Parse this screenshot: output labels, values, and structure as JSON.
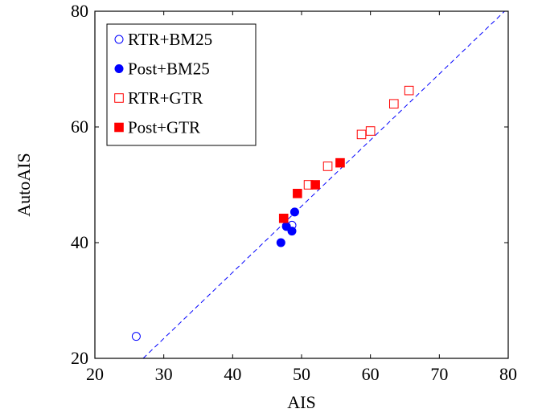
{
  "chart_data": {
    "type": "scatter",
    "xlabel": "AIS",
    "ylabel": "AutoAIS",
    "xlim": [
      20,
      80
    ],
    "ylim": [
      20,
      80
    ],
    "xticks": [
      20,
      30,
      40,
      50,
      60,
      70,
      80
    ],
    "yticks": [
      20,
      40,
      60,
      80
    ],
    "grid": false,
    "legend_position": "top-left",
    "reference_line": {
      "style": "dashed",
      "color": "#0000ff",
      "points": [
        [
          27,
          20
        ],
        [
          80,
          80.6
        ]
      ]
    },
    "series": [
      {
        "name": "RTR+BM25",
        "marker": "circle",
        "filled": false,
        "color": "#0000ff",
        "points": [
          [
            26.0,
            23.8
          ],
          [
            48.6,
            43.0
          ]
        ]
      },
      {
        "name": "Post+BM25",
        "marker": "circle",
        "filled": true,
        "color": "#0000ff",
        "points": [
          [
            47.0,
            40.0
          ],
          [
            47.8,
            42.8
          ],
          [
            48.6,
            42.0
          ],
          [
            49.0,
            45.3
          ]
        ]
      },
      {
        "name": "RTR+GTR",
        "marker": "square",
        "filled": false,
        "color": "#ff0000",
        "points": [
          [
            51.0,
            50.0
          ],
          [
            53.8,
            53.2
          ],
          [
            58.7,
            58.7
          ],
          [
            60.0,
            59.3
          ],
          [
            63.4,
            64.0
          ],
          [
            65.6,
            66.3
          ]
        ]
      },
      {
        "name": "Post+GTR",
        "marker": "square",
        "filled": true,
        "color": "#ff0000",
        "points": [
          [
            47.4,
            44.2
          ],
          [
            49.4,
            48.5
          ],
          [
            52.0,
            50.0
          ],
          [
            55.6,
            53.8
          ]
        ]
      }
    ]
  }
}
